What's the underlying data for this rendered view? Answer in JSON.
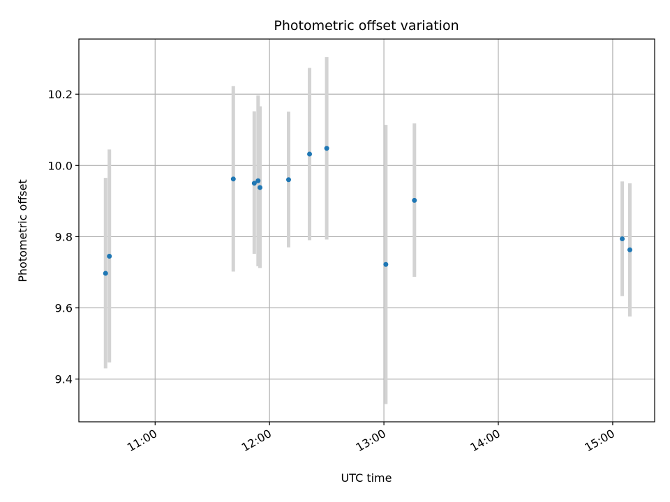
{
  "chart_data": {
    "type": "scatter",
    "title": "Photometric offset variation",
    "xlabel": "UTC time",
    "ylabel": "Photometric offset",
    "xlim": [
      "10:20",
      "15:22"
    ],
    "ylim": [
      9.28,
      10.355
    ],
    "x_ticks": [
      "11:00",
      "12:00",
      "13:00",
      "14:00",
      "15:00"
    ],
    "y_ticks": [
      9.4,
      9.6,
      9.8,
      10.0,
      10.2
    ],
    "grid": true,
    "marker_color": "#1f77b4",
    "errorbar_color": "#d3d3d3",
    "points": [
      {
        "time": "10:34",
        "value": 9.697,
        "low": 9.43,
        "high": 9.965
      },
      {
        "time": "10:36",
        "value": 9.745,
        "low": 9.447,
        "high": 10.045
      },
      {
        "time": "11:41",
        "value": 9.962,
        "low": 9.702,
        "high": 10.223
      },
      {
        "time": "11:52",
        "value": 9.95,
        "low": 9.752,
        "high": 10.152
      },
      {
        "time": "11:54",
        "value": 9.957,
        "low": 9.717,
        "high": 10.197
      },
      {
        "time": "11:55",
        "value": 9.938,
        "low": 9.712,
        "high": 10.166
      },
      {
        "time": "12:10",
        "value": 9.96,
        "low": 9.77,
        "high": 10.151
      },
      {
        "time": "12:21",
        "value": 10.032,
        "low": 9.79,
        "high": 10.274
      },
      {
        "time": "12:30",
        "value": 10.048,
        "low": 9.792,
        "high": 10.304
      },
      {
        "time": "13:01",
        "value": 9.722,
        "low": 9.33,
        "high": 10.114
      },
      {
        "time": "13:16",
        "value": 9.902,
        "low": 9.687,
        "high": 10.118
      },
      {
        "time": "15:05",
        "value": 9.794,
        "low": 9.633,
        "high": 9.955
      },
      {
        "time": "15:09",
        "value": 9.763,
        "low": 9.576,
        "high": 9.95
      }
    ]
  }
}
